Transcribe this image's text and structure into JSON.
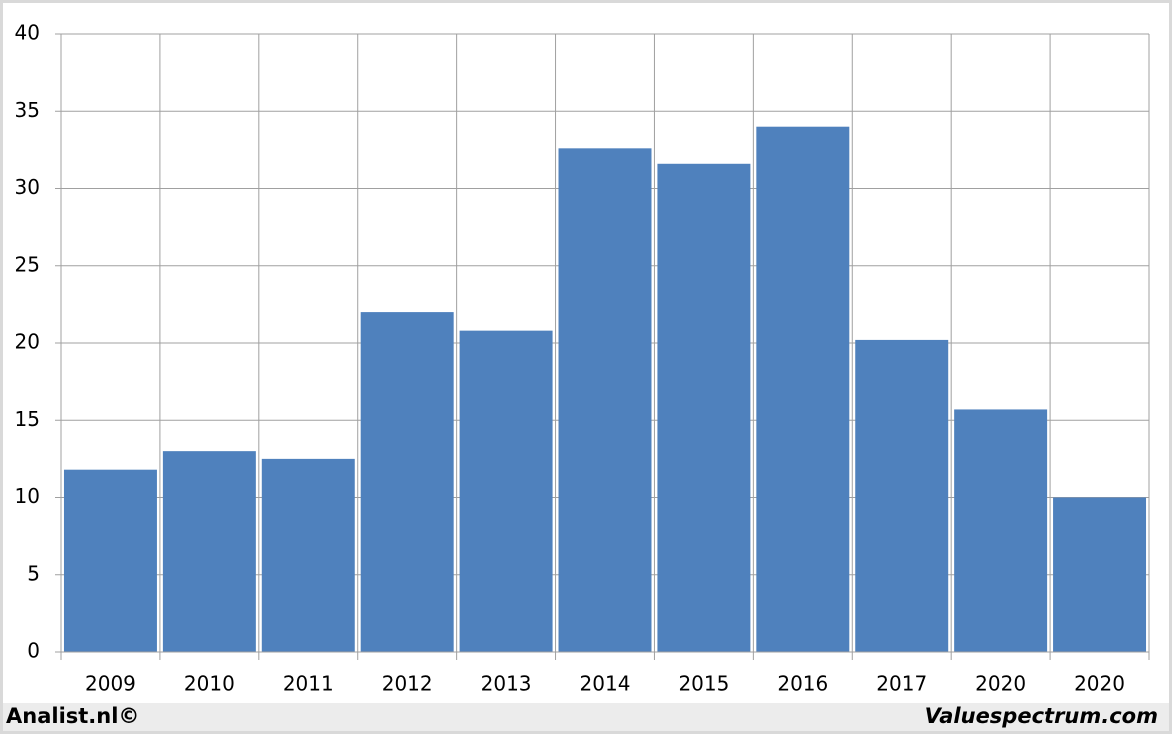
{
  "chart_data": {
    "type": "bar",
    "categories": [
      "2009",
      "2010",
      "2011",
      "2012",
      "2013",
      "2014",
      "2015",
      "2016",
      "2017",
      "2020",
      "2020"
    ],
    "values": [
      11.8,
      13,
      12.5,
      22,
      20.8,
      32.6,
      31.6,
      34,
      20.2,
      15.7,
      10
    ],
    "color": "#4f81bd",
    "ylim": [
      0,
      40
    ],
    "yticks": [
      0,
      5,
      10,
      15,
      20,
      25,
      30,
      35,
      40
    ],
    "grid": true,
    "annotations": [
      "Analist.nl©",
      "Valuespectrum.com"
    ]
  }
}
